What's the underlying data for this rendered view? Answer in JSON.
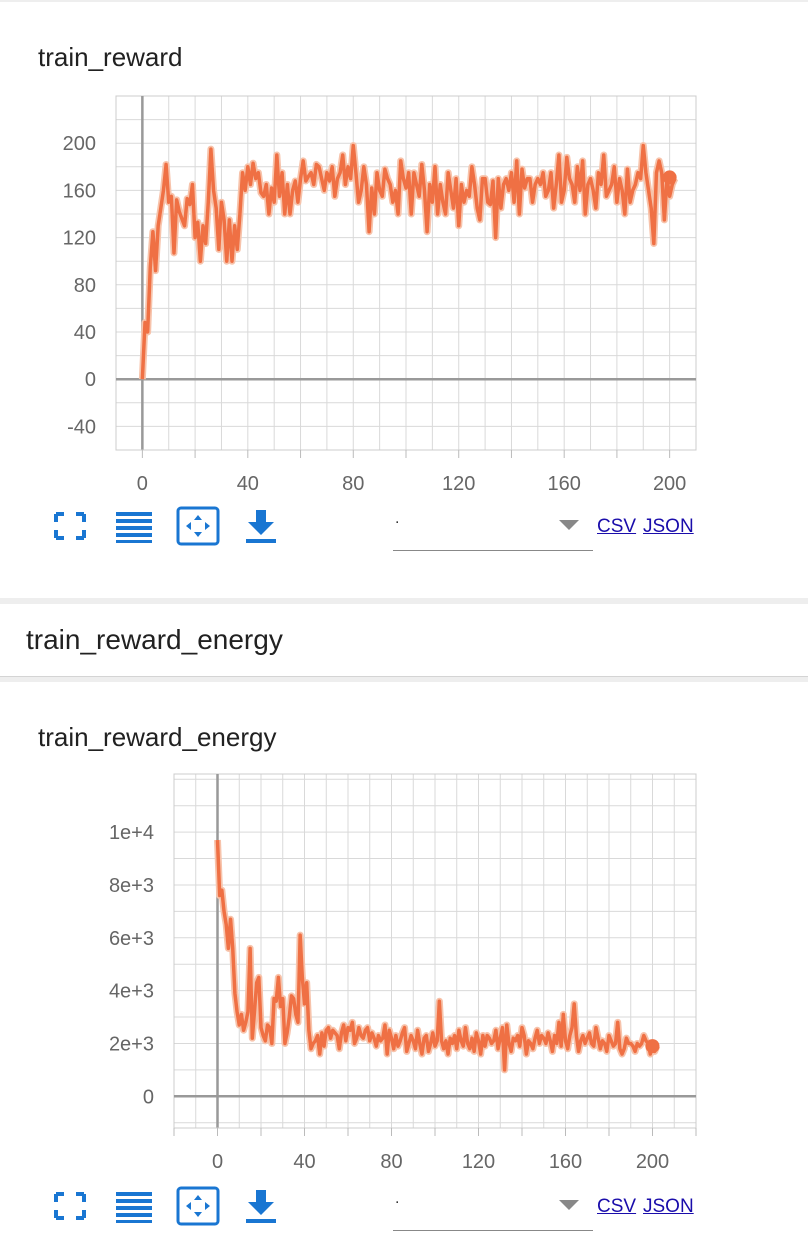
{
  "colors": {
    "series": "#ef7044",
    "series_faint": "#f7c3ab",
    "grid": "#d9d9d9",
    "axis": "#999999",
    "icon": "#1976d2"
  },
  "icons": [
    "fullscreen-icon",
    "list-icon",
    "fit-domain-icon",
    "download-icon"
  ],
  "toolbar": {
    "select_value": ".",
    "csv_label": "CSV",
    "json_label": "JSON"
  },
  "section": {
    "title": "train_reward_energy"
  },
  "cards": [
    {
      "title": "train_reward"
    },
    {
      "title": "train_reward_energy"
    }
  ],
  "chart_data": [
    {
      "type": "line",
      "title": "train_reward",
      "xlabel": "",
      "ylabel": "",
      "xlim": [
        -10,
        210
      ],
      "ylim": [
        -60,
        240
      ],
      "x_ticks": [
        0,
        40,
        80,
        120,
        160,
        200
      ],
      "y_ticks": [
        -40,
        0,
        40,
        80,
        120,
        160,
        200
      ],
      "x_tick_labels": [
        "0",
        "40",
        "80",
        "120",
        "160",
        "200"
      ],
      "y_tick_labels": [
        "-40",
        "0",
        "40",
        "80",
        "120",
        "160",
        "200"
      ],
      "grid": true,
      "series": [
        {
          "values": [
            0,
            48,
            40,
            95,
            125,
            92,
            130,
            145,
            160,
            182,
            150,
            155,
            107,
            152,
            142,
            136,
            130,
            153,
            148,
            165,
            120,
            133,
            100,
            130,
            115,
            150,
            195,
            160,
            145,
            110,
            150,
            135,
            100,
            135,
            100,
            130,
            110,
            140,
            175,
            160,
            180,
            165,
            183,
            170,
            175,
            158,
            155,
            165,
            140,
            162,
            150,
            190,
            155,
            175,
            140,
            165,
            140,
            160,
            168,
            150,
            170,
            185,
            168,
            172,
            175,
            165,
            182,
            180,
            170,
            160,
            175,
            168,
            180,
            155,
            170,
            175,
            190,
            165,
            180,
            170,
            198,
            175,
            150,
            160,
            180,
            165,
            125,
            162,
            140,
            175,
            160,
            155,
            178,
            170,
            165,
            150,
            160,
            140,
            185,
            170,
            162,
            175,
            140,
            175,
            165,
            155,
            182,
            160,
            125,
            165,
            150,
            180,
            140,
            165,
            150,
            140,
            175,
            160,
            145,
            170,
            130,
            165,
            150,
            160,
            155,
            180,
            165,
            145,
            135,
            170,
            170,
            150,
            148,
            168,
            120,
            170,
            145,
            165,
            170,
            160,
            175,
            150,
            185,
            140,
            178,
            162,
            170,
            170,
            150,
            165,
            170,
            165,
            175,
            155,
            160,
            175,
            145,
            165,
            190,
            150,
            160,
            188,
            170,
            165,
            150,
            180,
            160,
            185,
            140,
            165,
            170,
            160,
            145,
            175,
            165,
            190,
            155,
            160,
            165,
            180,
            150,
            170,
            160,
            140,
            178,
            150,
            160,
            165,
            175,
            170,
            198,
            175,
            160,
            145,
            115,
            175,
            185,
            175,
            135,
            170,
            155,
            165,
            170
          ]
        }
      ],
      "end_marker": {
        "x": 200,
        "y": 171
      }
    },
    {
      "type": "line",
      "title": "train_reward_energy",
      "xlabel": "",
      "ylabel": "",
      "xlim": [
        -20,
        220
      ],
      "ylim": [
        -1200,
        12200
      ],
      "x_ticks": [
        0,
        40,
        80,
        120,
        160,
        200
      ],
      "y_ticks": [
        0,
        2000,
        4000,
        6000,
        8000,
        10000
      ],
      "x_tick_labels": [
        "0",
        "40",
        "80",
        "120",
        "160",
        "200"
      ],
      "y_tick_labels": [
        "0",
        "2e+3",
        "4e+3",
        "6e+3",
        "8e+3",
        "1e+4"
      ],
      "grid": true,
      "series": [
        {
          "values": [
            9700,
            7600,
            7800,
            7000,
            6500,
            5600,
            6700,
            5600,
            3900,
            3200,
            2700,
            3100,
            2500,
            2800,
            3200,
            5600,
            2200,
            3200,
            4300,
            4500,
            2600,
            2300,
            2100,
            2700,
            2600,
            2000,
            3700,
            3600,
            4500,
            3400,
            3700,
            2000,
            2400,
            3000,
            3800,
            3700,
            3100,
            2800,
            6100,
            4500,
            3500,
            4300,
            2500,
            1800,
            2000,
            2100,
            2300,
            1600,
            2400,
            1900,
            2500,
            2600,
            2200,
            2500,
            2400,
            2300,
            1800,
            2400,
            2700,
            2100,
            2600,
            2500,
            2800,
            2000,
            2200,
            2600,
            2300,
            2200,
            2500,
            2600,
            2100,
            2400,
            2200,
            1900,
            2300,
            2100,
            2200,
            2700,
            1600,
            2500,
            2200,
            1800,
            2300,
            1900,
            2100,
            2400,
            2600,
            1700,
            2000,
            2300,
            2100,
            1800,
            2500,
            2000,
            1600,
            2200,
            2300,
            1700,
            2000,
            2400,
            1900,
            2100,
            3600,
            2100,
            1800,
            2100,
            1600,
            2200,
            2000,
            2300,
            1800,
            2500,
            2100,
            1900,
            2600,
            2000,
            1800,
            2200,
            1700,
            2400,
            2100,
            1600,
            2300,
            1900,
            2300,
            2200,
            2000,
            2100,
            2500,
            1800,
            2200,
            2600,
            1000,
            2700,
            2000,
            1700,
            2200,
            2100,
            2300,
            1900,
            2600,
            2300,
            1600,
            2100,
            2000,
            1800,
            2200,
            2500,
            2000,
            2300,
            2200,
            2000,
            2400,
            2100,
            1700,
            2300,
            2000,
            2800,
            1900,
            3100,
            2100,
            1800,
            2300,
            2600,
            3500,
            2300,
            1700,
            2100,
            2300,
            2000,
            2200,
            2400,
            2000,
            1900,
            2600,
            2200,
            1800,
            2100,
            2000,
            1700,
            2300,
            2100,
            1900,
            2000,
            2800,
            1800,
            1600,
            1800,
            2200,
            2000,
            2000,
            1900,
            1700,
            2000,
            1900,
            2000,
            2300,
            2100,
            2000,
            1600,
            1900,
            1700,
            1900
          ]
        }
      ],
      "end_marker": {
        "x": 200,
        "y": 1900
      }
    }
  ]
}
